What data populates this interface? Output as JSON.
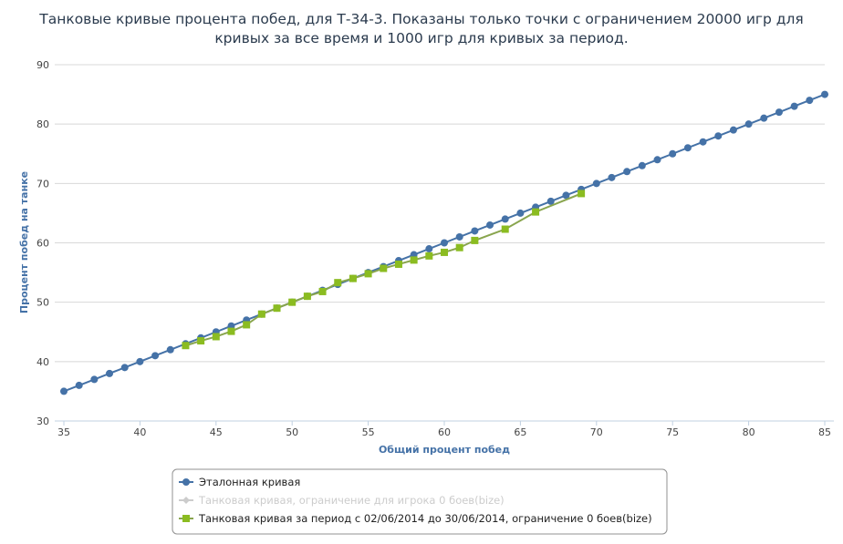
{
  "chart_data": {
    "type": "line",
    "title_line1": "Танковые кривые процента побед, для Т-34-3. Показаны только точки с ограничением 20000 игр для",
    "title_line2": "кривых за все время и 1000 игр для кривых за период.",
    "xlabel": "Общий процент побед",
    "ylabel": "Процент побед на танке",
    "xlim": [
      35,
      85
    ],
    "ylim": [
      30,
      90
    ],
    "xticks": [
      35,
      40,
      45,
      50,
      55,
      60,
      65,
      70,
      75,
      80,
      85
    ],
    "yticks": [
      30,
      40,
      50,
      60,
      70,
      80,
      90
    ],
    "grid": "horizontal",
    "legend_position": "bottom-center",
    "series": [
      {
        "name": "Эталонная кривая",
        "color": "#4572a7",
        "marker": "circle",
        "visible": true,
        "points": [
          [
            35,
            35
          ],
          [
            36,
            36
          ],
          [
            37,
            37
          ],
          [
            38,
            38
          ],
          [
            39,
            39
          ],
          [
            40,
            40
          ],
          [
            41,
            41
          ],
          [
            42,
            42
          ],
          [
            43,
            43
          ],
          [
            44,
            44
          ],
          [
            45,
            45
          ],
          [
            46,
            46
          ],
          [
            47,
            47
          ],
          [
            48,
            48
          ],
          [
            49,
            49
          ],
          [
            50,
            50
          ],
          [
            51,
            51
          ],
          [
            52,
            52
          ],
          [
            53,
            53
          ],
          [
            54,
            54
          ],
          [
            55,
            55
          ],
          [
            56,
            56
          ],
          [
            57,
            57
          ],
          [
            58,
            58
          ],
          [
            59,
            59
          ],
          [
            60,
            60
          ],
          [
            61,
            61
          ],
          [
            62,
            62
          ],
          [
            63,
            63
          ],
          [
            64,
            64
          ],
          [
            65,
            65
          ],
          [
            66,
            66
          ],
          [
            67,
            67
          ],
          [
            68,
            68
          ],
          [
            69,
            69
          ],
          [
            70,
            70
          ],
          [
            71,
            71
          ],
          [
            72,
            72
          ],
          [
            73,
            73
          ],
          [
            74,
            74
          ],
          [
            75,
            75
          ],
          [
            76,
            76
          ],
          [
            77,
            77
          ],
          [
            78,
            78
          ],
          [
            79,
            79
          ],
          [
            80,
            80
          ],
          [
            81,
            81
          ],
          [
            82,
            82
          ],
          [
            83,
            83
          ],
          [
            84,
            84
          ],
          [
            85,
            85
          ]
        ]
      },
      {
        "name": "Танковая кривая, ограничение для игрока 0 боев(bize)",
        "color": "#cccccc",
        "marker": "diamond",
        "visible": false,
        "points": []
      },
      {
        "name": "Танковая кривая за период с 02/06/2014 до 30/06/2014, ограничение 0 боев(bize)",
        "color": "#89a54e",
        "marker_color": "#8bbc21",
        "marker": "square",
        "visible": true,
        "points": [
          [
            43,
            42.7
          ],
          [
            44,
            43.5
          ],
          [
            45,
            44.2
          ],
          [
            46,
            45.1
          ],
          [
            47,
            46.2
          ],
          [
            48,
            48.0
          ],
          [
            49,
            49.0
          ],
          [
            50,
            50.0
          ],
          [
            51,
            51.0
          ],
          [
            52,
            51.8
          ],
          [
            53,
            53.3
          ],
          [
            54,
            54.0
          ],
          [
            55,
            54.8
          ],
          [
            56,
            55.7
          ],
          [
            57,
            56.4
          ],
          [
            58,
            57.1
          ],
          [
            59,
            57.8
          ],
          [
            60,
            58.4
          ],
          [
            61,
            59.2
          ],
          [
            62,
            60.4
          ],
          [
            64,
            62.3
          ],
          [
            66,
            65.2
          ],
          [
            69,
            68.3
          ]
        ]
      }
    ]
  }
}
